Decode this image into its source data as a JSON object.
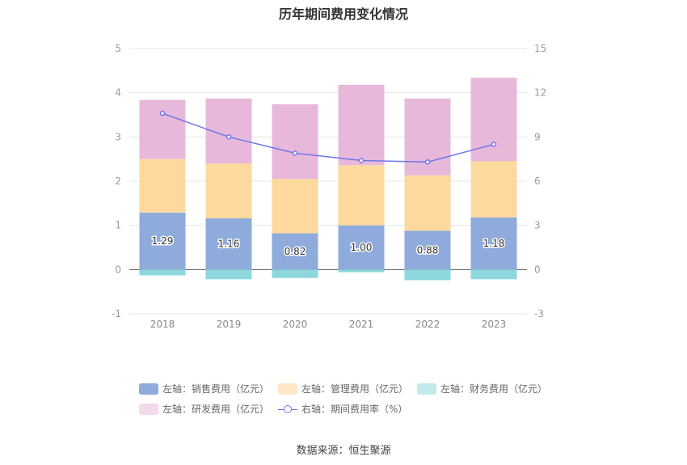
{
  "chart_data": {
    "type": "bar",
    "title": "历年期间费用变化情况",
    "categories": [
      "2018",
      "2019",
      "2020",
      "2021",
      "2022",
      "2023"
    ],
    "stacked": true,
    "series": [
      {
        "name": "左轴：销售费用（亿元）",
        "axis": "left",
        "type": "bar",
        "color": "#8eabdb",
        "values": [
          1.29,
          1.16,
          0.82,
          1.0,
          0.88,
          1.18
        ]
      },
      {
        "name": "左轴：管理费用（亿元）",
        "axis": "left",
        "type": "bar",
        "color": "#fdd99e",
        "values": [
          1.21,
          1.24,
          1.23,
          1.36,
          1.25,
          1.27
        ]
      },
      {
        "name": "左轴：财务费用（亿元）",
        "axis": "left",
        "type": "bar",
        "color": "#8dd8dc",
        "values": [
          -0.13,
          -0.22,
          -0.19,
          -0.06,
          -0.24,
          -0.22
        ]
      },
      {
        "name": "左轴：研发费用（亿元）",
        "axis": "left",
        "type": "bar",
        "color": "#e8b8da",
        "values": [
          1.34,
          1.47,
          1.69,
          1.82,
          1.74,
          1.89
        ]
      },
      {
        "name": "右轴：期间费用率（%）",
        "axis": "right",
        "type": "line",
        "color": "#6d76e9",
        "values": [
          10.6,
          9.0,
          7.9,
          7.4,
          7.3,
          8.5
        ]
      }
    ],
    "ylim_left": [
      -1,
      5
    ],
    "yticks_left": [
      "5",
      "4",
      "3",
      "2",
      "1",
      "0",
      "-1"
    ],
    "ylim_right": [
      -3,
      15
    ],
    "yticks_right": [
      "15",
      "12",
      "9",
      "6",
      "3",
      "0",
      "-3"
    ],
    "data_labels": [
      "1.29",
      "1.16",
      "0.82",
      "1.00",
      "0.88",
      "1.18"
    ],
    "grid": true,
    "legend_position": "bottom"
  },
  "legend": [
    {
      "label": "左轴：销售费用（亿元）",
      "color": "#8eabdb",
      "kind": "bar"
    },
    {
      "label": "左轴：管理费用（亿元）",
      "color": "#fde7c6",
      "kind": "bar"
    },
    {
      "label": "左轴：财务费用（亿元）",
      "color": "#c2e9eb",
      "kind": "bar"
    },
    {
      "label": "左轴：研发费用（亿元）",
      "color": "#f3d9ec",
      "kind": "bar"
    },
    {
      "label": "右轴：期间费用率（%）",
      "color": "#6d76e9",
      "kind": "line"
    }
  ],
  "source": "数据来源：恒生聚源"
}
